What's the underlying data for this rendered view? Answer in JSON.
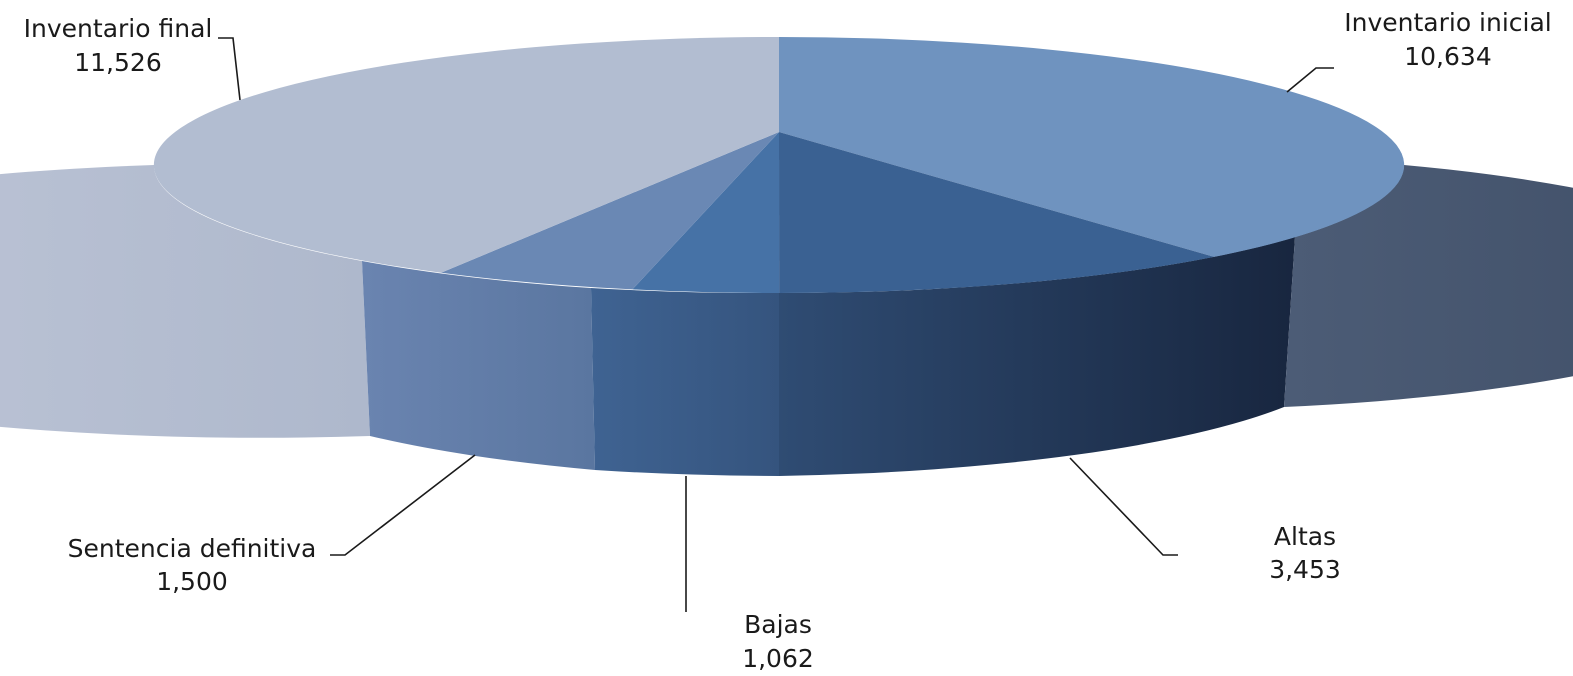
{
  "chart_data": {
    "type": "pie",
    "style": "3d",
    "slices": [
      {
        "label": "Inventario inicial",
        "value": 10634,
        "value_label": "10,634",
        "color": "#6f93bf"
      },
      {
        "label": "Altas",
        "value": 3453,
        "value_label": "3,453",
        "color": "#3a6192"
      },
      {
        "label": "Bajas",
        "value": 1062,
        "value_label": "1,062",
        "color": "#4672a6"
      },
      {
        "label": "Sentencia definitiva",
        "value": 1500,
        "value_label": "1,500",
        "color": "#6a88b4"
      },
      {
        "label": "Inventario final",
        "value": 11526,
        "value_label": "11,526",
        "color": "#b2bdd1"
      }
    ],
    "legend": "none"
  }
}
